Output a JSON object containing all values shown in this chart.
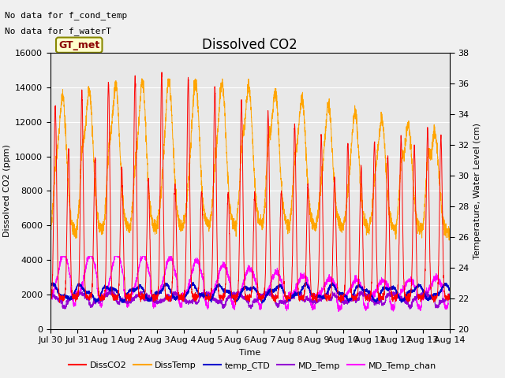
{
  "title": "Dissolved CO2",
  "xlabel": "Time",
  "ylabel_left": "Dissolved CO2 (ppm)",
  "ylabel_right": "Temperature, Water Level (cm)",
  "text_annotations": [
    "No data for f_cond_temp",
    "No data for f_waterT"
  ],
  "box_label": "GT_met",
  "ylim_left": [
    0,
    16000
  ],
  "ylim_right": [
    20,
    38
  ],
  "colors": {
    "DissCO2": "#ff0000",
    "DissTemp": "#ffa500",
    "temp_CTD": "#0000cd",
    "MD_Temp": "#9400d3",
    "MD_Temp_chan": "#ff00ff"
  },
  "legend_labels": [
    "DissCO2",
    "DissTemp",
    "temp_CTD",
    "MD_Temp",
    "MD_Temp_chan"
  ],
  "xtick_labels": [
    "Jul 30",
    "Jul 31",
    "Aug 1",
    "Aug 2",
    "Aug 3",
    "Aug 4",
    "Aug 5",
    "Aug 6",
    "Aug 7",
    "Aug 8",
    "Aug 9",
    "Aug 10",
    "Aug 11",
    "Aug 12",
    "Aug 13",
    "Aug 14"
  ],
  "yticks_left": [
    0,
    2000,
    4000,
    6000,
    8000,
    10000,
    12000,
    14000,
    16000
  ],
  "yticks_right": [
    20,
    22,
    24,
    26,
    28,
    30,
    32,
    34,
    36,
    38
  ],
  "grid_color": "#ffffff",
  "bg_color": "#e8e8e8",
  "fig_bg_color": "#f0f0f0",
  "title_fontsize": 12,
  "label_fontsize": 8,
  "tick_fontsize": 8,
  "annot_fontsize": 8,
  "legend_fontsize": 8
}
